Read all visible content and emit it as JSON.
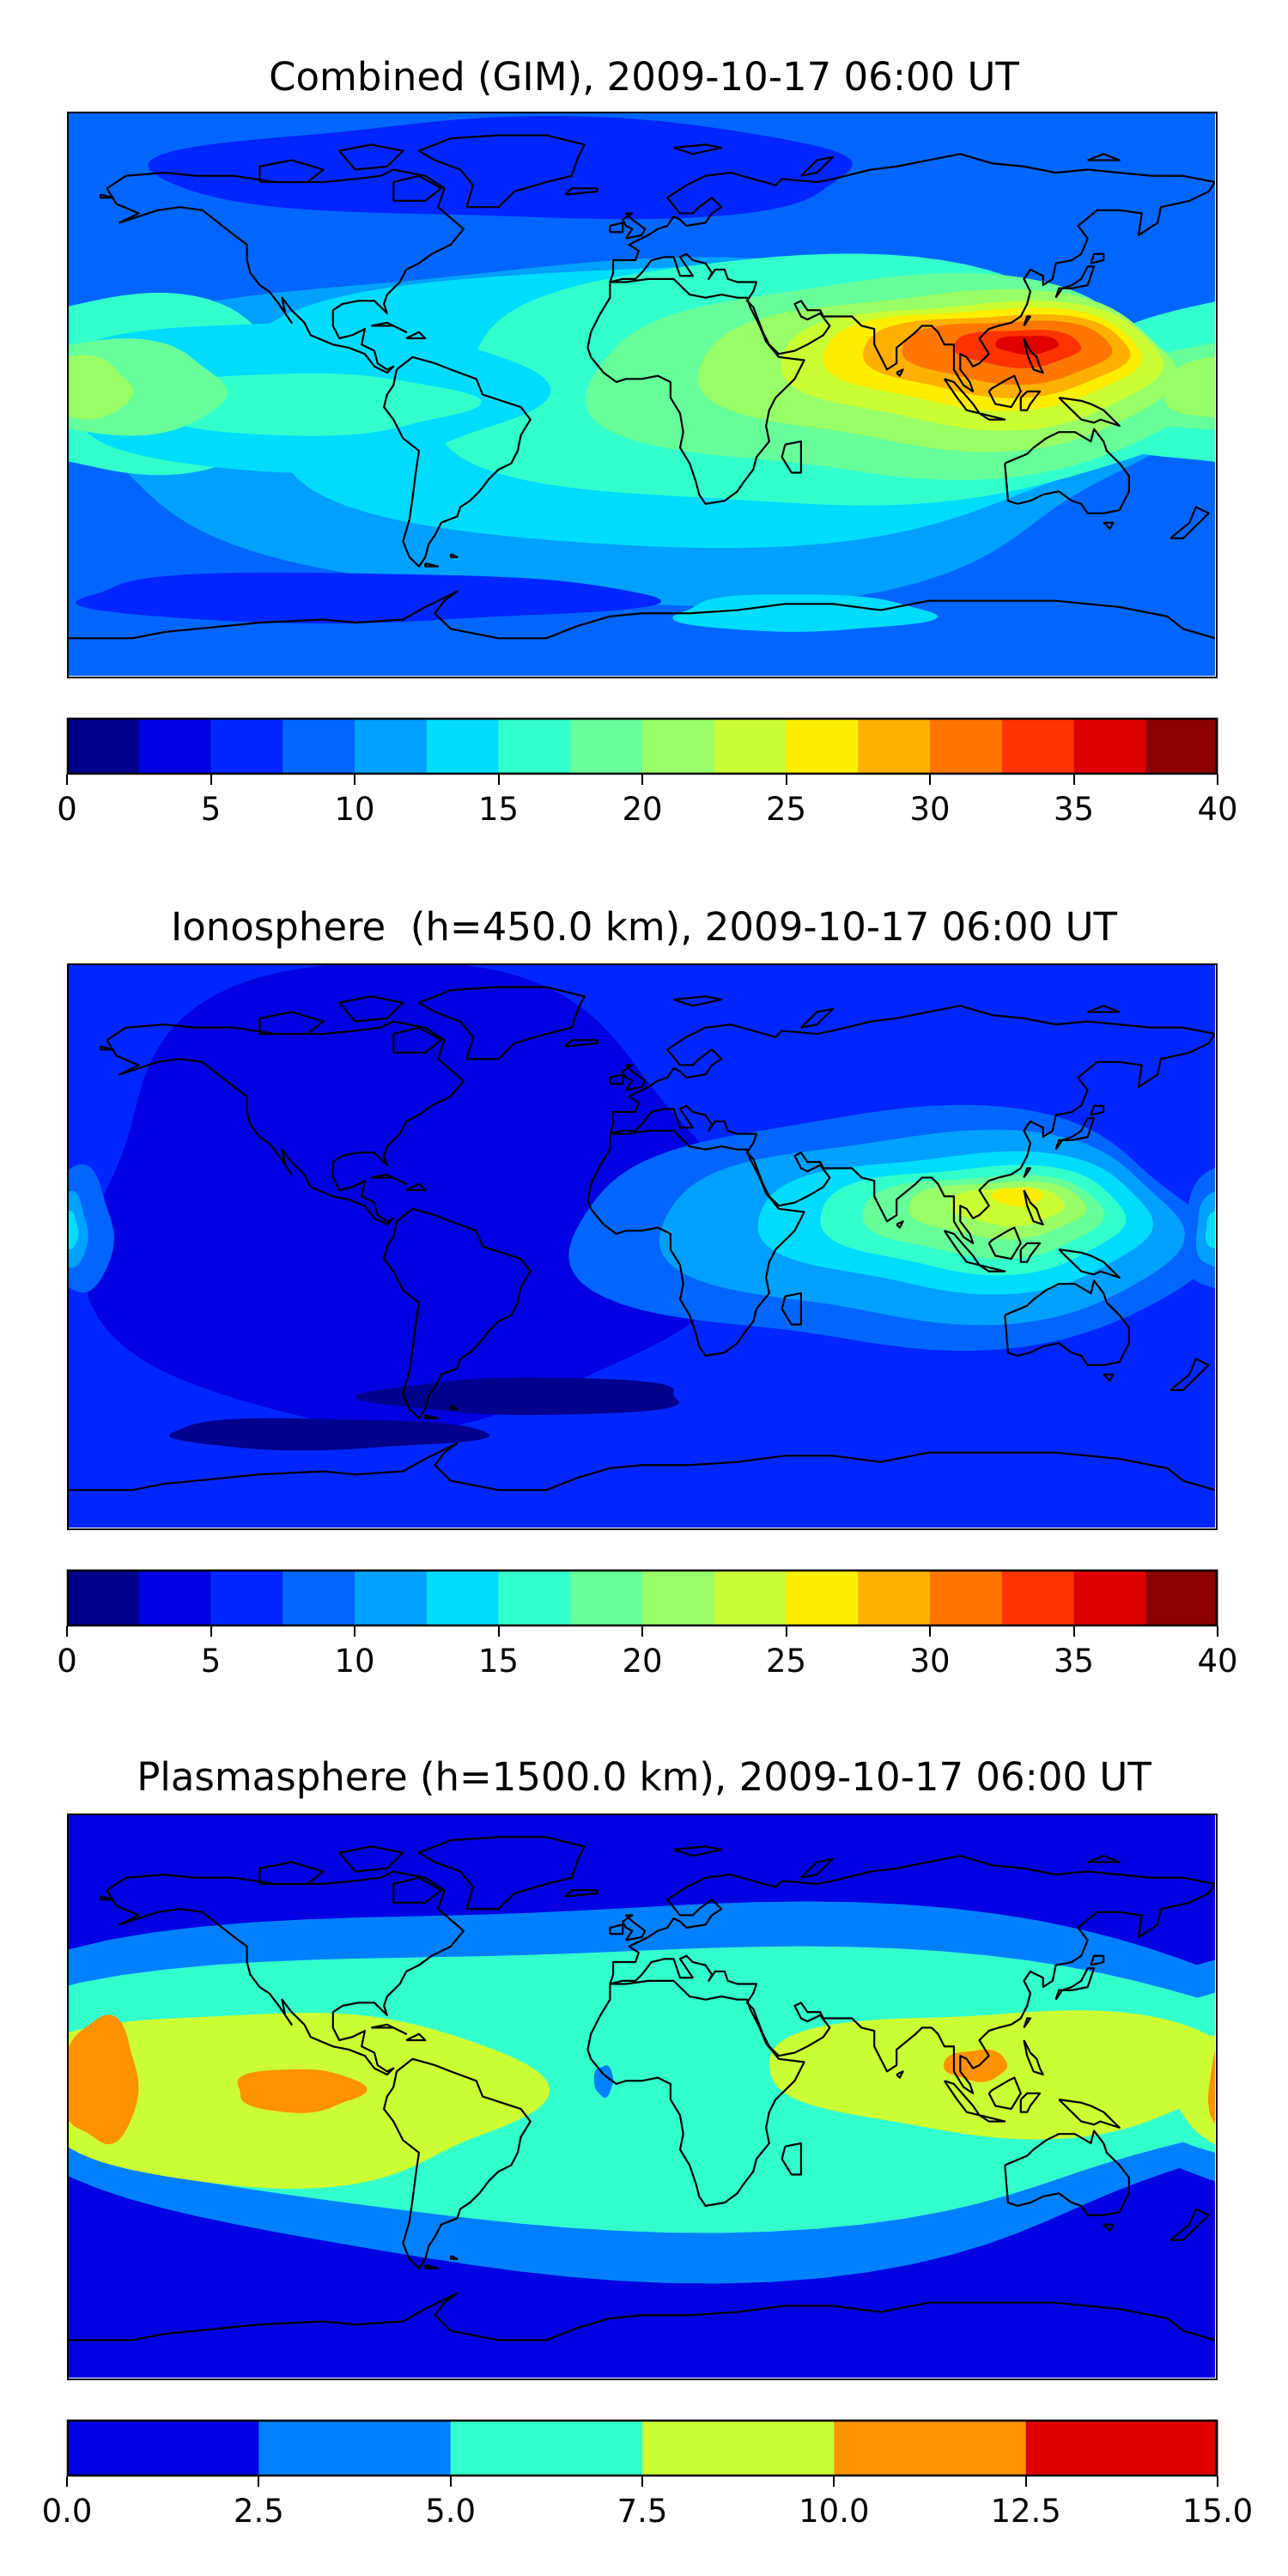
{
  "chart_data": [
    {
      "type": "contour-map",
      "title": "Combined (GIM), 2009-10-17 06:00 UT",
      "colorbar": {
        "levels": [
          0,
          2.5,
          5,
          7.5,
          10,
          12.5,
          15,
          17.5,
          20,
          22.5,
          25,
          27.5,
          30,
          32.5,
          35,
          37.5,
          40
        ],
        "colors": [
          "#00008c",
          "#0000e0",
          "#0026ff",
          "#0066ff",
          "#00a0ff",
          "#00dcff",
          "#33ffcc",
          "#66ff99",
          "#99ff66",
          "#ccff33",
          "#ffee00",
          "#ffb000",
          "#ff7700",
          "#ff3300",
          "#e00000",
          "#8c0000"
        ],
        "tick_values": [
          0,
          5,
          10,
          15,
          20,
          25,
          30,
          35,
          40
        ],
        "tick_labels": [
          "0",
          "5",
          "10",
          "15",
          "20",
          "25",
          "30",
          "35",
          "40"
        ]
      },
      "background_level": 3,
      "regions": [
        {
          "level": 4,
          "lon": -5,
          "lat": -10,
          "rlon": 175,
          "rlat": 55
        },
        {
          "level": 5,
          "lon": 20,
          "lat": -3,
          "rlon": 150,
          "rlat": 45
        },
        {
          "level": 6,
          "lon": 55,
          "lat": 3,
          "rlon": 120,
          "rlat": 40
        },
        {
          "level": 6,
          "lon": -165,
          "lat": 3,
          "rlon": 60,
          "rlat": 28
        },
        {
          "level": 5,
          "lon": -110,
          "lat": 0,
          "rlon": 75,
          "rlat": 24
        },
        {
          "level": 6,
          "lon": -105,
          "lat": -3,
          "rlon": 50,
          "rlat": 10
        },
        {
          "level": 7,
          "lon": -170,
          "lat": 2,
          "rlon": 40,
          "rlat": 15
        },
        {
          "level": 7,
          "lon": 80,
          "lat": 5,
          "rlon": 95,
          "rlat": 32
        },
        {
          "level": 8,
          "lon": 95,
          "lat": 8,
          "rlon": 75,
          "rlat": 25
        },
        {
          "level": 9,
          "lon": 105,
          "lat": 10,
          "rlon": 60,
          "rlat": 20
        },
        {
          "level": 10,
          "lon": 108,
          "lat": 12,
          "rlon": 50,
          "rlat": 16
        },
        {
          "level": 11,
          "lon": 112,
          "lat": 13,
          "rlon": 42,
          "rlat": 13
        },
        {
          "level": 12,
          "lon": 115,
          "lat": 14,
          "rlon": 33,
          "rlat": 10
        },
        {
          "level": 13,
          "lon": 118,
          "lat": 15,
          "rlon": 20,
          "rlat": 6
        },
        {
          "level": 14,
          "lon": 121,
          "lat": 16,
          "rlon": 10,
          "rlat": 3
        },
        {
          "level": 8,
          "lon": -178,
          "lat": 2,
          "rlon": 18,
          "rlat": 10
        },
        {
          "level": 2,
          "lon": -40,
          "lat": 72,
          "rlon": 110,
          "rlat": 16
        },
        {
          "level": 2,
          "lon": -90,
          "lat": -65,
          "rlon": 90,
          "rlat": 8
        },
        {
          "level": 5,
          "lon": 50,
          "lat": -70,
          "rlon": 40,
          "rlat": 6
        }
      ]
    },
    {
      "type": "contour-map",
      "title": "Ionosphere  (h=450.0 km), 2009-10-17 06:00 UT",
      "colorbar": {
        "levels": [
          0,
          2.5,
          5,
          7.5,
          10,
          12.5,
          15,
          17.5,
          20,
          22.5,
          25,
          27.5,
          30,
          32.5,
          35,
          37.5,
          40
        ],
        "colors": [
          "#00008c",
          "#0000e0",
          "#0026ff",
          "#0066ff",
          "#00a0ff",
          "#00dcff",
          "#33ffcc",
          "#66ff99",
          "#99ff66",
          "#ccff33",
          "#ffee00",
          "#ffb000",
          "#ff7700",
          "#ff3300",
          "#e00000",
          "#8c0000"
        ],
        "tick_values": [
          0,
          5,
          10,
          15,
          20,
          25,
          30,
          35,
          40
        ],
        "tick_labels": [
          "0",
          "5",
          "10",
          "15",
          "20",
          "25",
          "30",
          "35",
          "40"
        ]
      },
      "background_level": 2,
      "regions": [
        {
          "level": 1,
          "lon": -75,
          "lat": 15,
          "rlon": 100,
          "rlat": 75
        },
        {
          "level": 0,
          "lon": -35,
          "lat": -48,
          "rlon": 50,
          "rlat": 6
        },
        {
          "level": 0,
          "lon": -100,
          "lat": -60,
          "rlon": 50,
          "rlat": 5
        },
        {
          "level": 3,
          "lon": 80,
          "lat": 5,
          "rlon": 100,
          "rlat": 38
        },
        {
          "level": 4,
          "lon": 90,
          "lat": 6,
          "rlon": 82,
          "rlat": 30
        },
        {
          "level": 5,
          "lon": 100,
          "lat": 8,
          "rlon": 62,
          "rlat": 22
        },
        {
          "level": 6,
          "lon": 105,
          "lat": 9,
          "rlon": 48,
          "rlat": 17
        },
        {
          "level": 7,
          "lon": 108,
          "lat": 10,
          "rlon": 38,
          "rlat": 13
        },
        {
          "level": 8,
          "lon": 112,
          "lat": 12,
          "rlon": 28,
          "rlat": 9
        },
        {
          "level": 9,
          "lon": 115,
          "lat": 13,
          "rlon": 18,
          "rlat": 6
        },
        {
          "level": 10,
          "lon": 118,
          "lat": 16,
          "rlon": 8,
          "rlat": 3
        },
        {
          "level": 3,
          "lon": -178,
          "lat": 5,
          "rlon": 12,
          "rlat": 20
        },
        {
          "level": 4,
          "lon": -180,
          "lat": 5,
          "rlon": 6,
          "rlat": 12
        },
        {
          "level": 5,
          "lon": -180,
          "lat": 5,
          "rlon": 3,
          "rlat": 6
        }
      ]
    },
    {
      "type": "contour-map",
      "title": "Plasmasphere (h=1500.0 km), 2009-10-17 06:00 UT",
      "colorbar": {
        "levels": [
          0.0,
          2.5,
          5.0,
          7.5,
          10.0,
          12.5,
          15.0
        ],
        "colors": [
          "#0000e0",
          "#0080ff",
          "#33ffcc",
          "#ccff33",
          "#ff9200",
          "#e00000"
        ],
        "tick_values": [
          0.0,
          2.5,
          5.0,
          7.5,
          10.0,
          12.5,
          15.0
        ],
        "tick_labels": [
          "0.0",
          "2.5",
          "5.0",
          "7.5",
          "10.0",
          "12.5",
          "15.0"
        ]
      },
      "background_level": 0,
      "regions": [
        {
          "level": 1,
          "lon": 0,
          "lat": 5,
          "rlon": 215,
          "rlat": 60
        },
        {
          "level": 2,
          "lon": 0,
          "lat": 5,
          "rlon": 210,
          "rlat": 45
        },
        {
          "level": 3,
          "lon": -115,
          "lat": 0,
          "rlon": 80,
          "rlat": 28
        },
        {
          "level": 3,
          "lon": 115,
          "lat": 8,
          "rlon": 75,
          "rlat": 20
        },
        {
          "level": 4,
          "lon": -170,
          "lat": 5,
          "rlon": 12,
          "rlat": 20
        },
        {
          "level": 4,
          "lon": -108,
          "lat": 2,
          "rlon": 20,
          "rlat": 7
        },
        {
          "level": 4,
          "lon": 105,
          "lat": 10,
          "rlon": 10,
          "rlat": 5
        },
        {
          "level": 1,
          "lon": -12,
          "lat": 5,
          "rlon": 3,
          "rlat": 5
        }
      ]
    }
  ]
}
